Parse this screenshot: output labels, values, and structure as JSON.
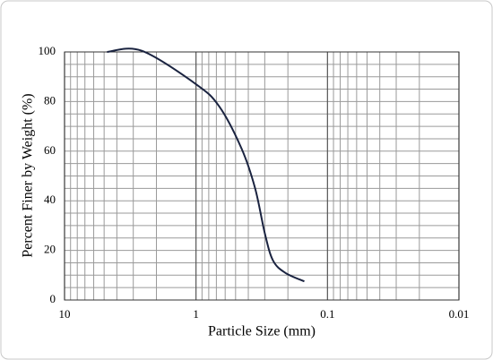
{
  "chart_data": {
    "type": "line",
    "x_label": "Particle Size (mm)",
    "y_label": "Percent Finer by Weight (%)",
    "x": [
      4.75,
      2.6,
      1,
      0.665,
      0.45,
      0.355,
      0.3,
      0.26,
      0.21,
      0.15
    ],
    "series": [
      {
        "color": "#1a2340",
        "values": [
          100,
          100.5,
          87,
          78,
          61,
          45,
          27,
          16,
          11,
          7.5
        ]
      }
    ],
    "xlim": [
      10,
      0.01
    ],
    "xticks": [
      10,
      1,
      0.1,
      0.01
    ],
    "log_x": true,
    "ylim": [
      0,
      100
    ],
    "yticks": [
      0,
      20,
      40,
      60,
      80,
      100
    ],
    "grid": true
  }
}
